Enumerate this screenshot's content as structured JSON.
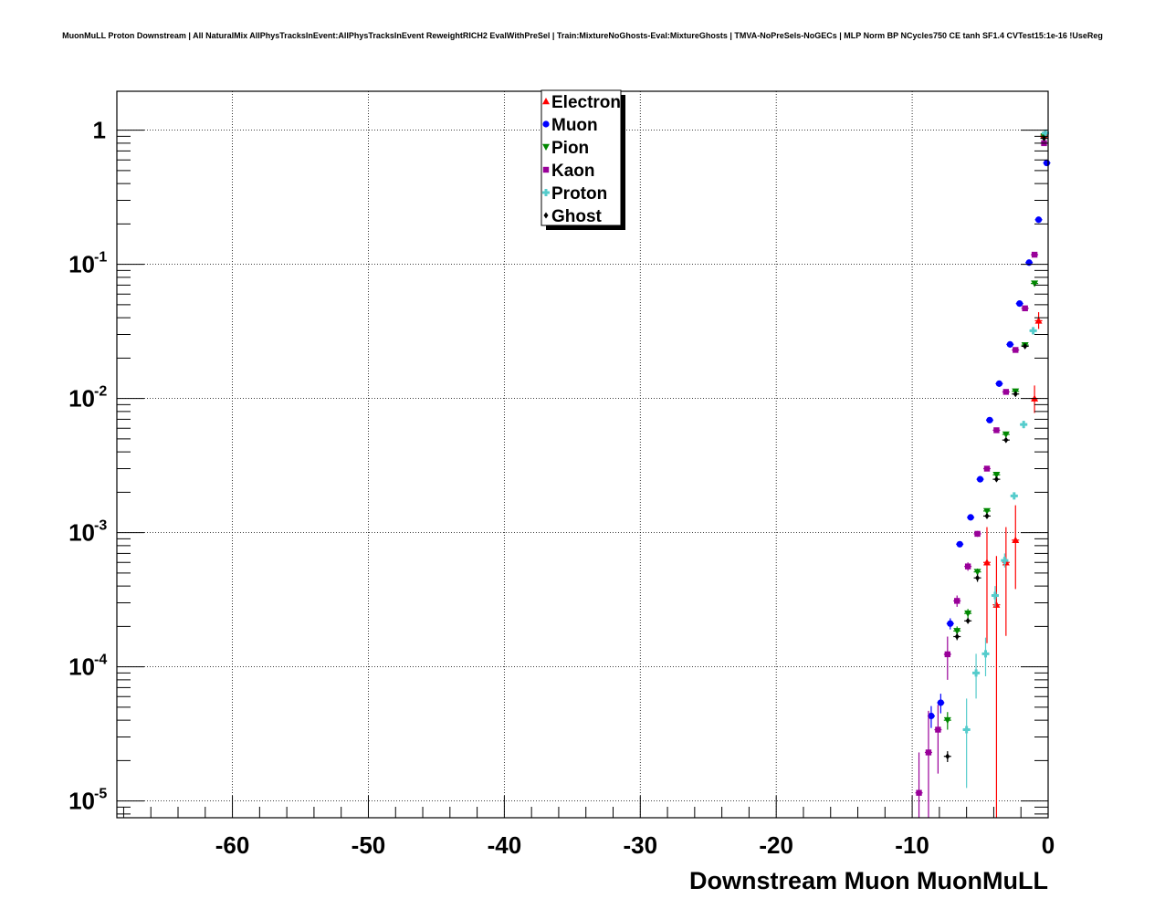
{
  "chart_data": {
    "type": "scatter",
    "title": "MuonMuLL Proton Downstream | All NaturalMix AllPhysTracksInEvent:AllPhysTracksInEvent ReweightRICH2 EvalWithPreSel | Train:MixtureNoGhosts-Eval:MixtureGhosts | TMVA-NoPreSels-NoGECs | MLP Norm BP NCycles750 CE tanh SF1.4 CVTest15:1e-16 !UseReg",
    "xlabel": "Downstream Muon MuonMuLL",
    "ylabel": "",
    "xlim": [
      -68.5,
      0
    ],
    "ylim": [
      7.5e-06,
      1.95
    ],
    "yscale": "log",
    "grid": true,
    "legend_position": "top-center",
    "x_ticks": [
      -60,
      -50,
      -40,
      -30,
      -20,
      -10,
      0
    ],
    "x_tick_labels": [
      "-60",
      "-50",
      "-40",
      "-30",
      "-20",
      "-10",
      "0"
    ],
    "y_ticks": [
      {
        "value": 1,
        "base": "1",
        "exp": ""
      },
      {
        "value": 0.1,
        "base": "10",
        "exp": "-1"
      },
      {
        "value": 0.01,
        "base": "10",
        "exp": "-2"
      },
      {
        "value": 0.001,
        "base": "10",
        "exp": "-3"
      },
      {
        "value": 0.0001,
        "base": "10",
        "exp": "-4"
      },
      {
        "value": 1e-05,
        "base": "10",
        "exp": "-5"
      }
    ],
    "series": [
      {
        "name": "Electron",
        "color": "#ff0000",
        "marker": "triangle-up",
        "points": [
          {
            "x": -0.3,
            "y": 0.92,
            "ylo": 0.86,
            "yhi": 0.98
          },
          {
            "x": -0.7,
            "y": 0.038,
            "ylo": 0.033,
            "yhi": 0.044
          },
          {
            "x": -1.0,
            "y": 0.01,
            "ylo": 0.0078,
            "yhi": 0.0125
          },
          {
            "x": -2.4,
            "y": 0.00088,
            "ylo": 0.00038,
            "yhi": 0.0016
          },
          {
            "x": -3.1,
            "y": 0.0006,
            "ylo": 0.00017,
            "yhi": 0.0011
          },
          {
            "x": -3.8,
            "y": 0.00029,
            "ylo": 7.5e-06,
            "yhi": 0.00067
          },
          {
            "x": -4.5,
            "y": 0.0006,
            "ylo": 0.00015,
            "yhi": 0.0011
          }
        ]
      },
      {
        "name": "Muon",
        "color": "#0000ff",
        "marker": "circle",
        "points": [
          {
            "x": -0.1,
            "y": 0.57,
            "ylo": 0.56,
            "yhi": 0.58
          },
          {
            "x": -0.7,
            "y": 0.215,
            "ylo": 0.21,
            "yhi": 0.22
          },
          {
            "x": -1.4,
            "y": 0.103,
            "ylo": 0.1,
            "yhi": 0.106
          },
          {
            "x": -2.1,
            "y": 0.051,
            "ylo": 0.049,
            "yhi": 0.053
          },
          {
            "x": -2.8,
            "y": 0.0253,
            "ylo": 0.0245,
            "yhi": 0.026
          },
          {
            "x": -3.6,
            "y": 0.0129,
            "ylo": 0.0125,
            "yhi": 0.0133
          },
          {
            "x": -4.3,
            "y": 0.0069,
            "ylo": 0.0066,
            "yhi": 0.0072
          },
          {
            "x": -5.0,
            "y": 0.0025,
            "ylo": 0.0024,
            "yhi": 0.0026
          },
          {
            "x": -5.7,
            "y": 0.0013,
            "ylo": 0.00125,
            "yhi": 0.00135
          },
          {
            "x": -6.5,
            "y": 0.00082,
            "ylo": 0.00078,
            "yhi": 0.00086
          },
          {
            "x": -7.2,
            "y": 0.00021,
            "ylo": 0.00019,
            "yhi": 0.00023
          },
          {
            "x": -7.9,
            "y": 5.4e-05,
            "ylo": 4.5e-05,
            "yhi": 6.3e-05
          },
          {
            "x": -8.6,
            "y": 4.3e-05,
            "ylo": 3.5e-05,
            "yhi": 5.1e-05
          }
        ]
      },
      {
        "name": "Pion",
        "color": "#008800",
        "marker": "triangle-down",
        "points": [
          {
            "x": -0.3,
            "y": 0.9,
            "ylo": 0.88,
            "yhi": 0.92
          },
          {
            "x": -1.0,
            "y": 0.072,
            "ylo": 0.07,
            "yhi": 0.074
          },
          {
            "x": -1.7,
            "y": 0.025,
            "ylo": 0.024,
            "yhi": 0.026
          },
          {
            "x": -2.4,
            "y": 0.0113,
            "ylo": 0.0109,
            "yhi": 0.0117
          },
          {
            "x": -3.1,
            "y": 0.0054,
            "ylo": 0.0052,
            "yhi": 0.0056
          },
          {
            "x": -3.8,
            "y": 0.0027,
            "ylo": 0.0026,
            "yhi": 0.0028
          },
          {
            "x": -4.5,
            "y": 0.00145,
            "ylo": 0.0014,
            "yhi": 0.0015
          },
          {
            "x": -5.2,
            "y": 0.00051,
            "ylo": 0.00048,
            "yhi": 0.00054
          },
          {
            "x": -5.9,
            "y": 0.00025,
            "ylo": 0.00023,
            "yhi": 0.00027
          },
          {
            "x": -6.7,
            "y": 0.000185,
            "ylo": 0.00017,
            "yhi": 0.0002
          },
          {
            "x": -7.4,
            "y": 4e-05,
            "ylo": 3.4e-05,
            "yhi": 4.6e-05
          }
        ]
      },
      {
        "name": "Kaon",
        "color": "#990099",
        "marker": "square",
        "points": [
          {
            "x": -0.3,
            "y": 0.8,
            "ylo": 0.78,
            "yhi": 0.82
          },
          {
            "x": -1.0,
            "y": 0.118,
            "ylo": 0.114,
            "yhi": 0.122
          },
          {
            "x": -1.7,
            "y": 0.047,
            "ylo": 0.045,
            "yhi": 0.049
          },
          {
            "x": -2.4,
            "y": 0.023,
            "ylo": 0.022,
            "yhi": 0.024
          },
          {
            "x": -3.1,
            "y": 0.0112,
            "ylo": 0.0108,
            "yhi": 0.0116
          },
          {
            "x": -3.8,
            "y": 0.0058,
            "ylo": 0.0056,
            "yhi": 0.006
          },
          {
            "x": -4.5,
            "y": 0.003,
            "ylo": 0.0029,
            "yhi": 0.0031
          },
          {
            "x": -5.2,
            "y": 0.00098,
            "ylo": 0.00093,
            "yhi": 0.00103
          },
          {
            "x": -5.9,
            "y": 0.00056,
            "ylo": 0.00052,
            "yhi": 0.0006
          },
          {
            "x": -6.7,
            "y": 0.00031,
            "ylo": 0.00028,
            "yhi": 0.00034
          },
          {
            "x": -7.4,
            "y": 0.000124,
            "ylo": 8e-05,
            "yhi": 0.000168
          },
          {
            "x": -8.1,
            "y": 3.4e-05,
            "ylo": 1.6e-05,
            "yhi": 5.2e-05
          },
          {
            "x": -8.8,
            "y": 2.3e-05,
            "ylo": 7.5e-06,
            "yhi": 4.7e-05
          },
          {
            "x": -9.5,
            "y": 1.15e-05,
            "ylo": 7.5e-06,
            "yhi": 2.3e-05
          }
        ]
      },
      {
        "name": "Proton",
        "color": "#55cccc",
        "marker": "cross",
        "points": [
          {
            "x": -0.2,
            "y": 0.95,
            "ylo": 0.93,
            "yhi": 0.97
          },
          {
            "x": -1.1,
            "y": 0.032,
            "ylo": 0.03,
            "yhi": 0.034
          },
          {
            "x": -1.8,
            "y": 0.0064,
            "ylo": 0.006,
            "yhi": 0.0068
          },
          {
            "x": -2.5,
            "y": 0.00188,
            "ylo": 0.00178,
            "yhi": 0.00198
          },
          {
            "x": -3.2,
            "y": 0.00062,
            "ylo": 0.00055,
            "yhi": 0.0007
          },
          {
            "x": -3.9,
            "y": 0.00034,
            "ylo": 0.00028,
            "yhi": 0.0004
          },
          {
            "x": -4.6,
            "y": 0.000125,
            "ylo": 8.5e-05,
            "yhi": 0.000165
          },
          {
            "x": -5.3,
            "y": 9e-05,
            "ylo": 5.8e-05,
            "yhi": 0.000125
          },
          {
            "x": -6.0,
            "y": 3.4e-05,
            "ylo": 1.25e-05,
            "yhi": 5.8e-05
          }
        ]
      },
      {
        "name": "Ghost",
        "color": "#000000",
        "marker": "diamond",
        "points": [
          {
            "x": -0.3,
            "y": 0.87,
            "ylo": 0.85,
            "yhi": 0.89
          },
          {
            "x": -1.7,
            "y": 0.0245,
            "ylo": 0.0237,
            "yhi": 0.0253
          },
          {
            "x": -2.4,
            "y": 0.0108,
            "ylo": 0.0104,
            "yhi": 0.0112
          },
          {
            "x": -3.1,
            "y": 0.0049,
            "ylo": 0.0047,
            "yhi": 0.0051
          },
          {
            "x": -3.8,
            "y": 0.0025,
            "ylo": 0.0024,
            "yhi": 0.0026
          },
          {
            "x": -4.5,
            "y": 0.00133,
            "ylo": 0.00127,
            "yhi": 0.00139
          },
          {
            "x": -5.2,
            "y": 0.00046,
            "ylo": 0.00043,
            "yhi": 0.00049
          },
          {
            "x": -5.9,
            "y": 0.00022,
            "ylo": 0.00021,
            "yhi": 0.00023
          },
          {
            "x": -6.7,
            "y": 0.000168,
            "ylo": 0.000158,
            "yhi": 0.000178
          },
          {
            "x": -7.4,
            "y": 2.15e-05,
            "ylo": 1.95e-05,
            "yhi": 2.35e-05
          }
        ]
      }
    ]
  }
}
